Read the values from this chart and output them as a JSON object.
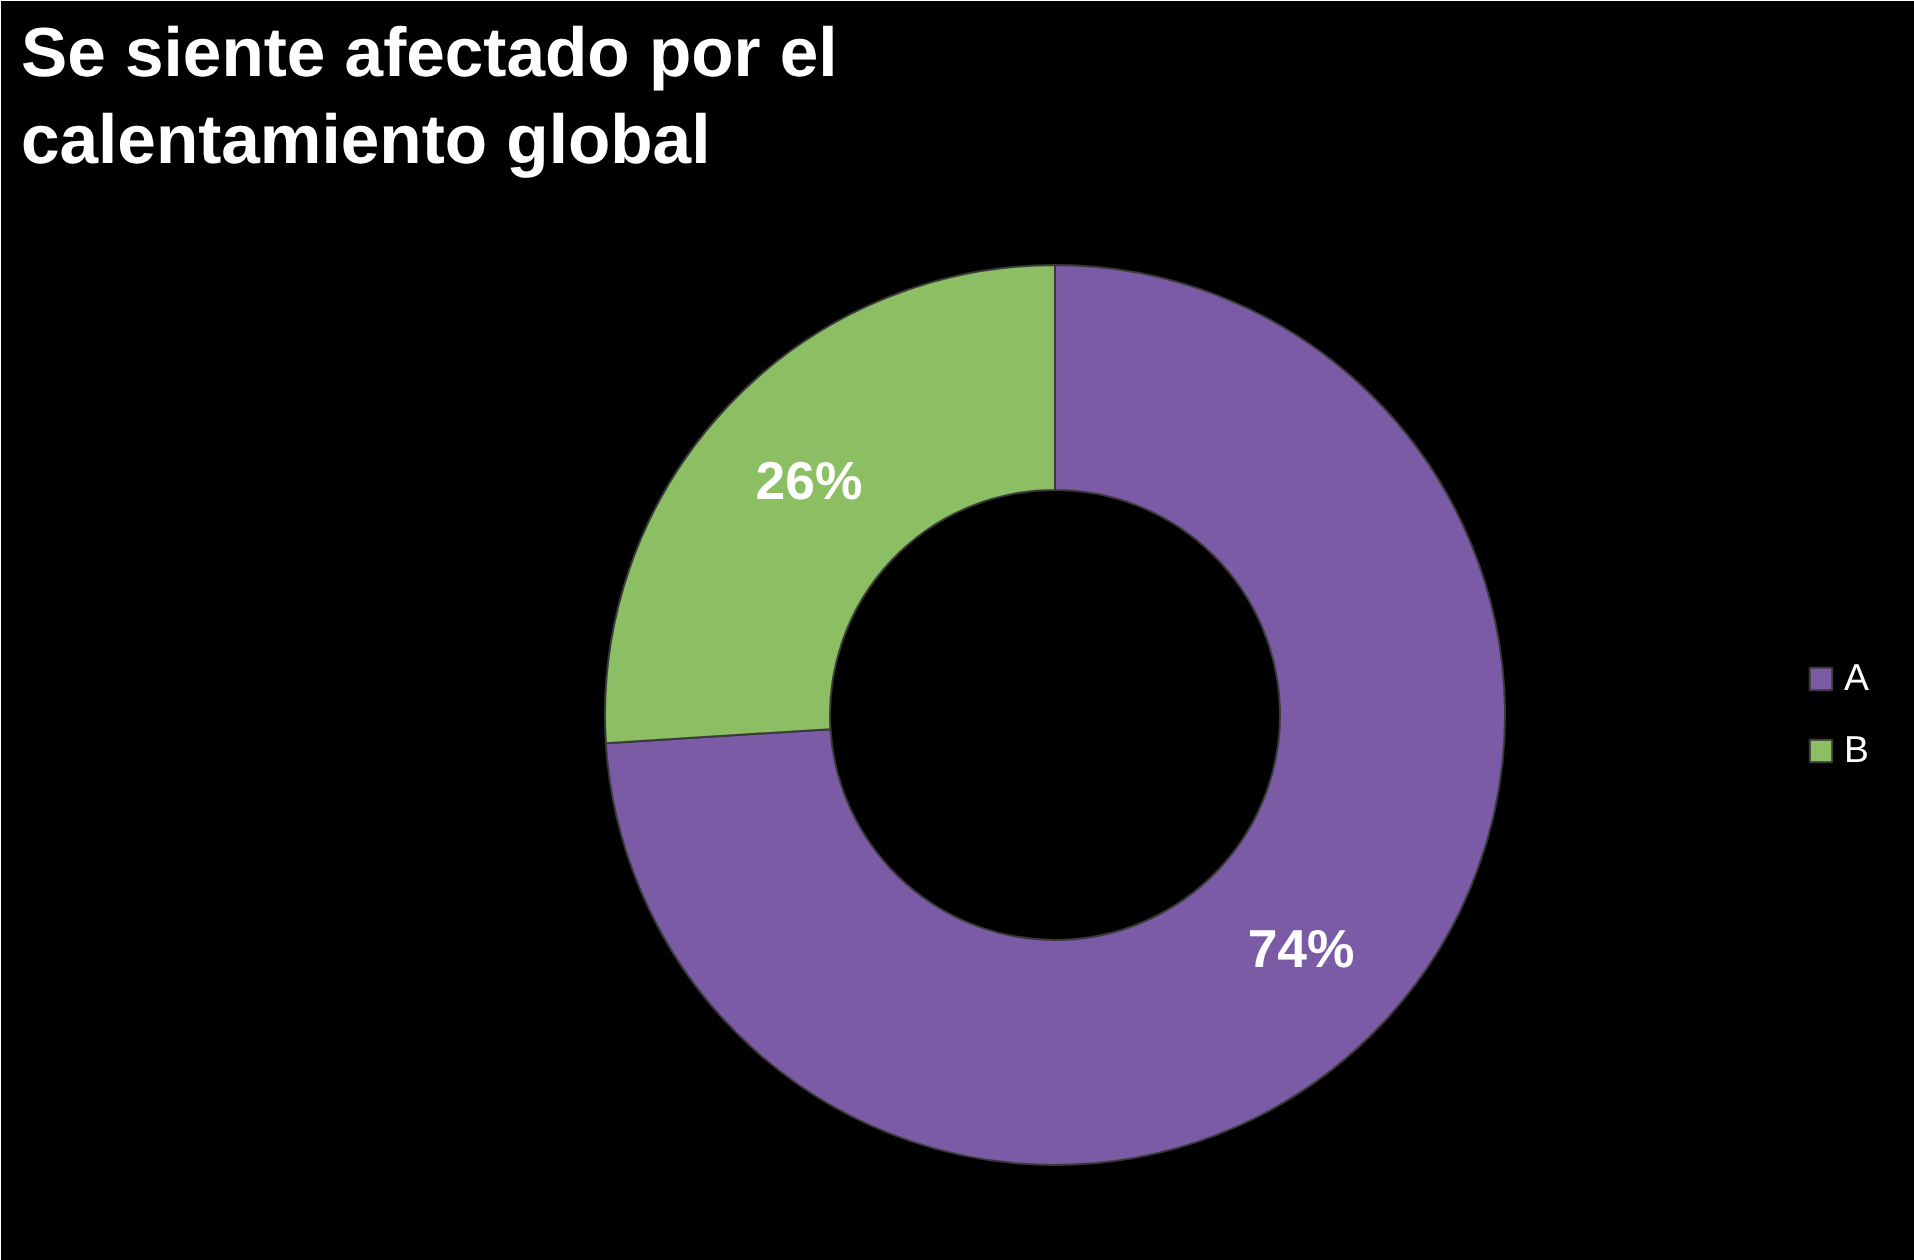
{
  "chart_data": {
    "type": "donut",
    "title": "Se siente afectado por el calentamiento global",
    "categories": [
      "A",
      "B"
    ],
    "values": [
      74,
      26
    ],
    "colors": [
      "#7b5ba6",
      "#8cbf63"
    ],
    "value_labels": [
      "74%",
      "26%"
    ],
    "legend": "right"
  }
}
